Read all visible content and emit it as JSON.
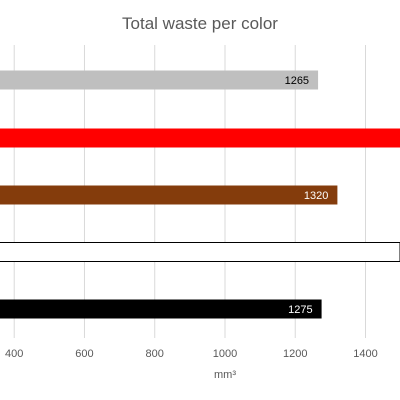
{
  "chart_data": {
    "type": "bar",
    "orientation": "horizontal",
    "title": "Total waste per color",
    "xlabel": "mm³",
    "ylabel": "",
    "xlim": [
      290,
      1500
    ],
    "x_ticks": [
      "400",
      "600",
      "800",
      "1000",
      "1200",
      "1400"
    ],
    "x_tick_values": [
      400,
      600,
      800,
      1000,
      1200,
      1400
    ],
    "grid": "vertical",
    "legend": "none",
    "categories": [
      "",
      "",
      "",
      "",
      ""
    ],
    "bars": [
      {
        "value": 1265,
        "label": "1265",
        "color": "#bfbfbf",
        "border": "#bfbfbf",
        "label_color": "#000000"
      },
      {
        "value": 1520,
        "label": "",
        "color": "#ff0000",
        "border": "#ff0000",
        "label_color": "#000000"
      },
      {
        "value": 1320,
        "label": "1320",
        "color": "#843c0c",
        "border": "#843c0c",
        "label_color": "#ffffff"
      },
      {
        "value": 1520,
        "label": "",
        "color": "#ffffff",
        "border": "#000000",
        "label_color": "#000000"
      },
      {
        "value": 1275,
        "label": "1275",
        "color": "#000000",
        "border": "#000000",
        "label_color": "#ffffff"
      }
    ]
  }
}
